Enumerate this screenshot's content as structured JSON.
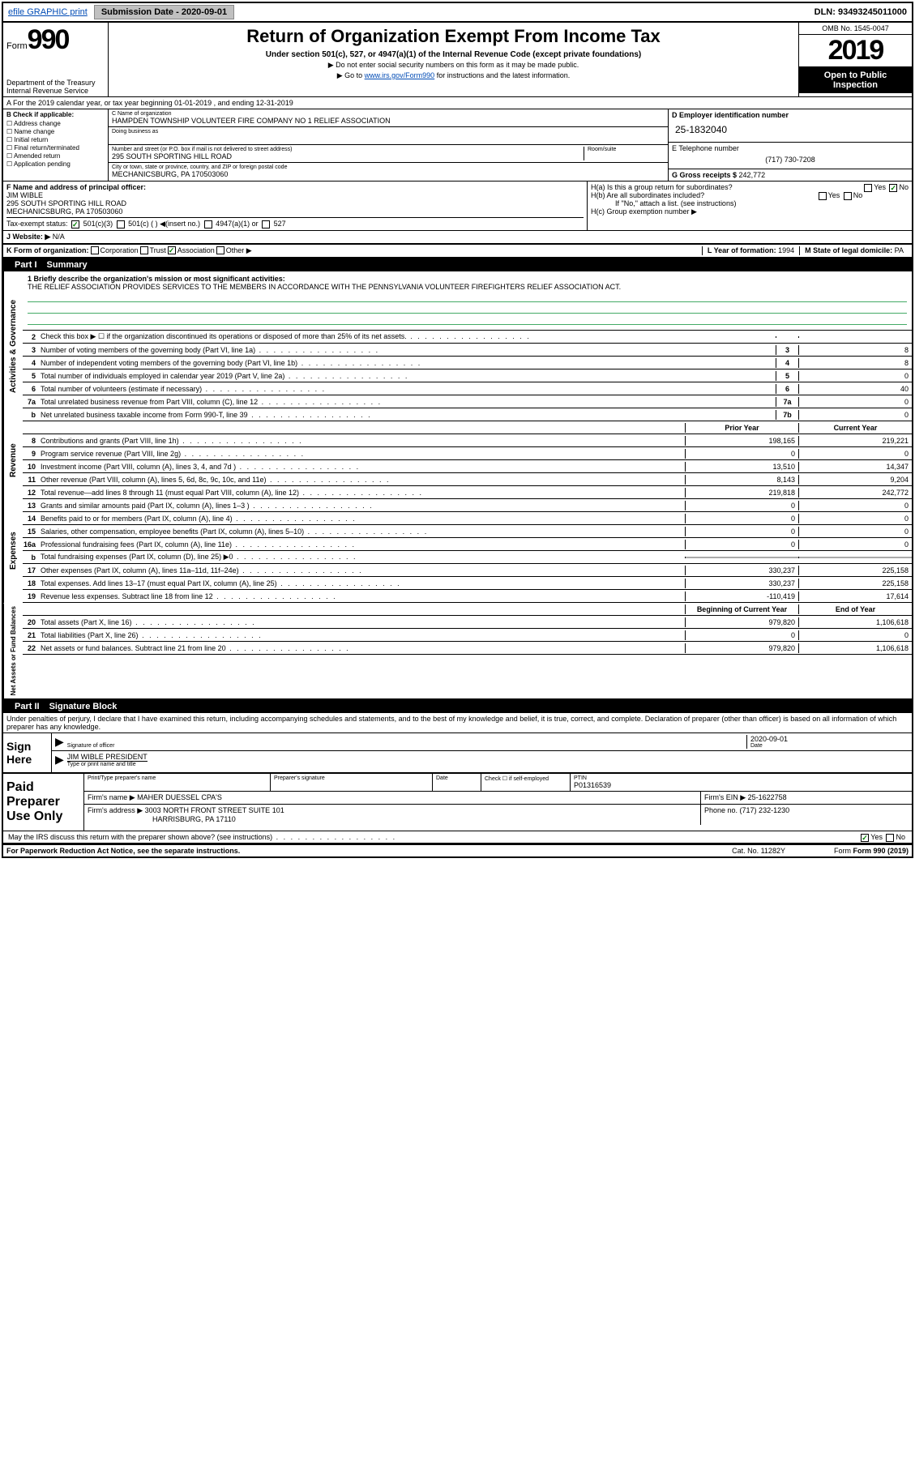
{
  "topbar": {
    "efile": "efile GRAPHIC print",
    "submission_label": "Submission Date ",
    "submission_date": "- 2020-09-01",
    "dln_label": "DLN: ",
    "dln": "93493245011000"
  },
  "header": {
    "form_label": "Form",
    "form_num": "990",
    "dept": "Department of the Treasury\nInternal Revenue Service",
    "title": "Return of Organization Exempt From Income Tax",
    "subhead": "Under section 501(c), 527, or 4947(a)(1) of the Internal Revenue Code (except private foundations)",
    "instr1": "▶ Do not enter social security numbers on this form as it may be made public.",
    "instr2_pre": "▶ Go to ",
    "instr2_link": "www.irs.gov/Form990",
    "instr2_post": " for instructions and the latest information.",
    "omb": "OMB No. 1545-0047",
    "year": "2019",
    "open": "Open to Public Inspection"
  },
  "line_a": "A  For the 2019 calendar year, or tax year beginning 01-01-2019    , and ending 12-31-2019",
  "section_b": {
    "label": "B Check if applicable:",
    "items": [
      "Address change",
      "Name change",
      "Initial return",
      "Final return/terminated",
      "Amended return",
      "Application pending"
    ]
  },
  "section_c": {
    "name_label": "C Name of organization",
    "name": "HAMPDEN TOWNSHIP VOLUNTEER FIRE COMPANY NO 1 RELIEF ASSOCIATION",
    "dba_label": "Doing business as",
    "addr_label": "Number and street (or P.O. box if mail is not delivered to street address)",
    "room_label": "Room/suite",
    "addr": "295 SOUTH SPORTING HILL ROAD",
    "city_label": "City or town, state or province, country, and ZIP or foreign postal code",
    "city": "MECHANICSBURG, PA  170503060"
  },
  "section_d": {
    "ein_label": "D Employer identification number",
    "ein": "25-1832040",
    "phone_label": "E Telephone number",
    "phone": "(717) 730-7208",
    "gross_label": "G Gross receipts $ ",
    "gross": "242,772"
  },
  "section_f": {
    "label": "F Name and address of principal officer:",
    "name": "JIM WIBLE",
    "addr1": "295 SOUTH SPORTING HILL ROAD",
    "addr2": "MECHANICSBURG, PA  170503060"
  },
  "section_h": {
    "ha": "H(a)  Is this a group return for subordinates?",
    "hb": "H(b)  Are all subordinates included?",
    "hb_note": "If \"No,\" attach a list. (see instructions)",
    "hc": "H(c)  Group exemption number ▶",
    "yes": "Yes",
    "no": "No"
  },
  "section_i": {
    "label": "Tax-exempt status:",
    "opt1": "501(c)(3)",
    "opt2": "501(c) (  ) ◀(insert no.)",
    "opt3": "4947(a)(1) or",
    "opt4": "527"
  },
  "section_j": {
    "label": "J  Website: ▶",
    "val": "N/A"
  },
  "section_k": {
    "label": "K Form of organization:",
    "opts": [
      "Corporation",
      "Trust",
      "Association",
      "Other ▶"
    ],
    "l_label": "L Year of formation: ",
    "l_val": "1994",
    "m_label": "M State of legal domicile: ",
    "m_val": "PA"
  },
  "part1": {
    "num": "Part I",
    "title": "Summary"
  },
  "mission": {
    "q": "1  Briefly describe the organization's mission or most significant activities:",
    "text": "THE RELIEF ASSOCIATION PROVIDES SERVICES TO THE MEMBERS IN ACCORDANCE WITH THE PENNSYLVANIA VOLUNTEER FIREFIGHTERS RELIEF ASSOCIATION ACT."
  },
  "sidebar_labels": {
    "gov": "Activities & Governance",
    "rev": "Revenue",
    "exp": "Expenses",
    "net": "Net Assets or Fund Balances"
  },
  "gov_rows": [
    {
      "n": "2",
      "desc": "Check this box ▶ ☐  if the organization discontinued its operations or disposed of more than 25% of its net assets.",
      "box": "",
      "val": ""
    },
    {
      "n": "3",
      "desc": "Number of voting members of the governing body (Part VI, line 1a)",
      "box": "3",
      "val": "8"
    },
    {
      "n": "4",
      "desc": "Number of independent voting members of the governing body (Part VI, line 1b)",
      "box": "4",
      "val": "8"
    },
    {
      "n": "5",
      "desc": "Total number of individuals employed in calendar year 2019 (Part V, line 2a)",
      "box": "5",
      "val": "0"
    },
    {
      "n": "6",
      "desc": "Total number of volunteers (estimate if necessary)",
      "box": "6",
      "val": "40"
    },
    {
      "n": "7a",
      "desc": "Total unrelated business revenue from Part VIII, column (C), line 12",
      "box": "7a",
      "val": "0"
    },
    {
      "n": "b",
      "desc": "Net unrelated business taxable income from Form 990-T, line 39",
      "box": "7b",
      "val": "0"
    }
  ],
  "col_headers": {
    "prior": "Prior Year",
    "current": "Current Year"
  },
  "rev_rows": [
    {
      "n": "8",
      "desc": "Contributions and grants (Part VIII, line 1h)",
      "p": "198,165",
      "c": "219,221"
    },
    {
      "n": "9",
      "desc": "Program service revenue (Part VIII, line 2g)",
      "p": "0",
      "c": "0"
    },
    {
      "n": "10",
      "desc": "Investment income (Part VIII, column (A), lines 3, 4, and 7d )",
      "p": "13,510",
      "c": "14,347"
    },
    {
      "n": "11",
      "desc": "Other revenue (Part VIII, column (A), lines 5, 6d, 8c, 9c, 10c, and 11e)",
      "p": "8,143",
      "c": "9,204"
    },
    {
      "n": "12",
      "desc": "Total revenue—add lines 8 through 11 (must equal Part VIII, column (A), line 12)",
      "p": "219,818",
      "c": "242,772"
    }
  ],
  "exp_rows": [
    {
      "n": "13",
      "desc": "Grants and similar amounts paid (Part IX, column (A), lines 1–3 )",
      "p": "0",
      "c": "0"
    },
    {
      "n": "14",
      "desc": "Benefits paid to or for members (Part IX, column (A), line 4)",
      "p": "0",
      "c": "0"
    },
    {
      "n": "15",
      "desc": "Salaries, other compensation, employee benefits (Part IX, column (A), lines 5–10)",
      "p": "0",
      "c": "0"
    },
    {
      "n": "16a",
      "desc": "Professional fundraising fees (Part IX, column (A), line 11e)",
      "p": "0",
      "c": "0"
    },
    {
      "n": "b",
      "desc": "Total fundraising expenses (Part IX, column (D), line 25) ▶0",
      "p": "",
      "c": "",
      "gray": true
    },
    {
      "n": "17",
      "desc": "Other expenses (Part IX, column (A), lines 11a–11d, 11f–24e)",
      "p": "330,237",
      "c": "225,158"
    },
    {
      "n": "18",
      "desc": "Total expenses. Add lines 13–17 (must equal Part IX, column (A), line 25)",
      "p": "330,237",
      "c": "225,158"
    },
    {
      "n": "19",
      "desc": "Revenue less expenses. Subtract line 18 from line 12",
      "p": "-110,419",
      "c": "17,614"
    }
  ],
  "net_headers": {
    "begin": "Beginning of Current Year",
    "end": "End of Year"
  },
  "net_rows": [
    {
      "n": "20",
      "desc": "Total assets (Part X, line 16)",
      "p": "979,820",
      "c": "1,106,618"
    },
    {
      "n": "21",
      "desc": "Total liabilities (Part X, line 26)",
      "p": "0",
      "c": "0"
    },
    {
      "n": "22",
      "desc": "Net assets or fund balances. Subtract line 21 from line 20",
      "p": "979,820",
      "c": "1,106,618"
    }
  ],
  "part2": {
    "num": "Part II",
    "title": "Signature Block"
  },
  "sig": {
    "decl": "Under penalties of perjury, I declare that I have examined this return, including accompanying schedules and statements, and to the best of my knowledge and belief, it is true, correct, and complete. Declaration of preparer (other than officer) is based on all information of which preparer has any knowledge.",
    "sign_here": "Sign Here",
    "sig_label": "Signature of officer",
    "date_label": "Date",
    "date": "2020-09-01",
    "name": "JIM WIBLE PRESIDENT",
    "name_label": "Type or print name and title"
  },
  "paid": {
    "title": "Paid Preparer Use Only",
    "h1": "Print/Type preparer's name",
    "h2": "Preparer's signature",
    "h3": "Date",
    "h4": "Check ☐ if self-employed",
    "h5_label": "PTIN",
    "h5": "P01316539",
    "firm_label": "Firm's name    ▶ ",
    "firm": "MAHER DUESSEL CPA'S",
    "ein_label": "Firm's EIN ▶ ",
    "ein": "25-1622758",
    "addr_label": "Firm's address ▶ ",
    "addr1": "3003 NORTH FRONT STREET SUITE 101",
    "addr2": "HARRISBURG, PA  17110",
    "phone_label": "Phone no. ",
    "phone": "(717) 232-1230"
  },
  "footer": {
    "discuss": "May the IRS discuss this return with the preparer shown above? (see instructions)",
    "yes": "Yes",
    "no": "No",
    "paperwork": "For Paperwork Reduction Act Notice, see the separate instructions.",
    "cat": "Cat. No. 11282Y",
    "form": "Form 990 (2019)"
  }
}
